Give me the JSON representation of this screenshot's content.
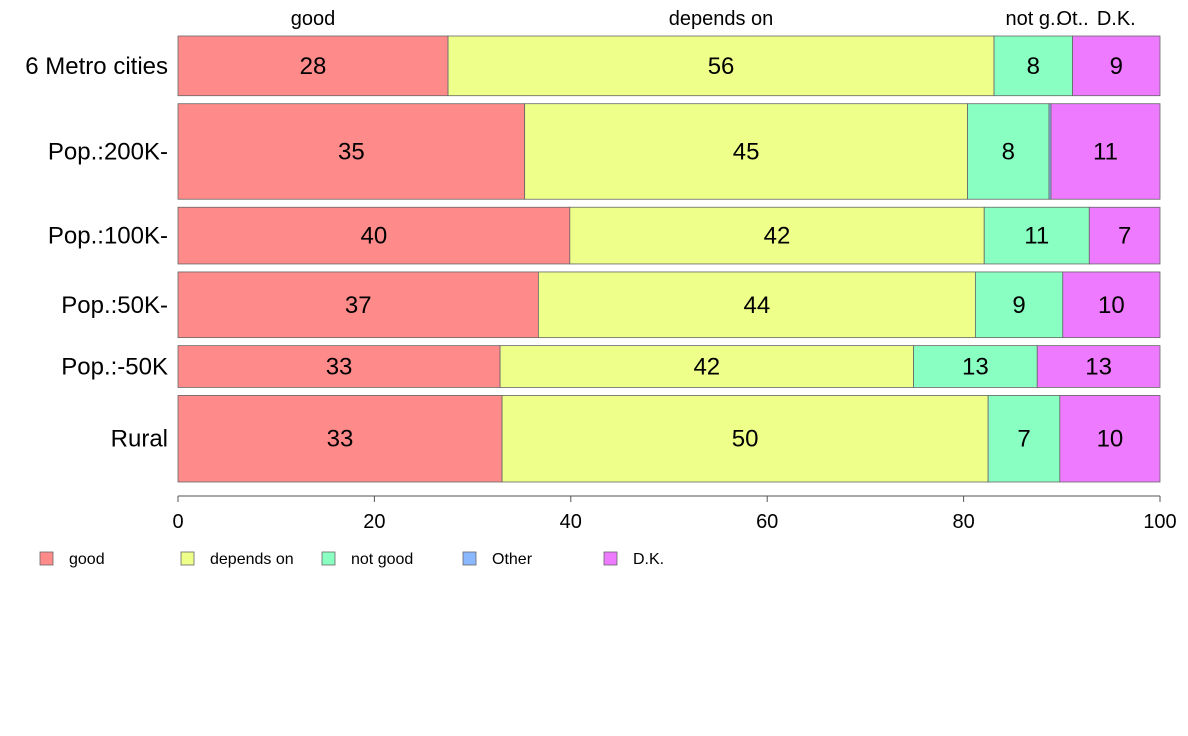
{
  "chart_data": {
    "type": "bar",
    "orientation": "horizontal",
    "stacked": true,
    "title": "",
    "xlabel": "",
    "ylabel": "",
    "xlim": [
      0,
      100
    ],
    "x_ticks": [
      0,
      20,
      40,
      60,
      80,
      100
    ],
    "grid": false,
    "legend_position": "bottom-left",
    "categories": [
      "6 Metro cities",
      "Pop.:200K-",
      "Pop.:100K-",
      "Pop.:50K-",
      "Pop.:-50K",
      "Rural"
    ],
    "row_weights": [
      2.0,
      3.2,
      1.9,
      2.2,
      1.4,
      2.9
    ],
    "series": [
      {
        "name": "good",
        "color": "#ff8a8a",
        "values": [
          27.5,
          35.3,
          39.9,
          36.7,
          32.8,
          33.0
        ],
        "labels": [
          "28",
          "35",
          "40",
          "37",
          "33",
          "33"
        ]
      },
      {
        "name": "depends on",
        "color": "#eeff8a",
        "values": [
          55.6,
          45.1,
          42.2,
          44.5,
          42.1,
          49.5
        ],
        "labels": [
          "56",
          "45",
          "42",
          "44",
          "42",
          "50"
        ]
      },
      {
        "name": "not good",
        "color": "#8affc2",
        "values": [
          8.0,
          8.3,
          10.7,
          8.9,
          12.6,
          7.3
        ],
        "labels": [
          "8",
          "8",
          "11",
          "9",
          "13",
          "7"
        ]
      },
      {
        "name": "Other",
        "color": "#8ab8ff",
        "values": [
          0.0,
          0.2,
          0.0,
          0.0,
          0.0,
          0.0
        ],
        "labels": [
          "",
          "",
          "",
          "",
          "",
          ""
        ]
      },
      {
        "name": "D.K.",
        "color": "#ee7aff",
        "values": [
          8.9,
          11.1,
          7.2,
          9.9,
          12.5,
          10.2
        ],
        "labels": [
          "9",
          "11",
          "7",
          "10",
          "13",
          "10"
        ]
      }
    ],
    "top_labels": [
      "good",
      "depends on",
      "not g..",
      "Ot..",
      "D.K."
    ]
  }
}
